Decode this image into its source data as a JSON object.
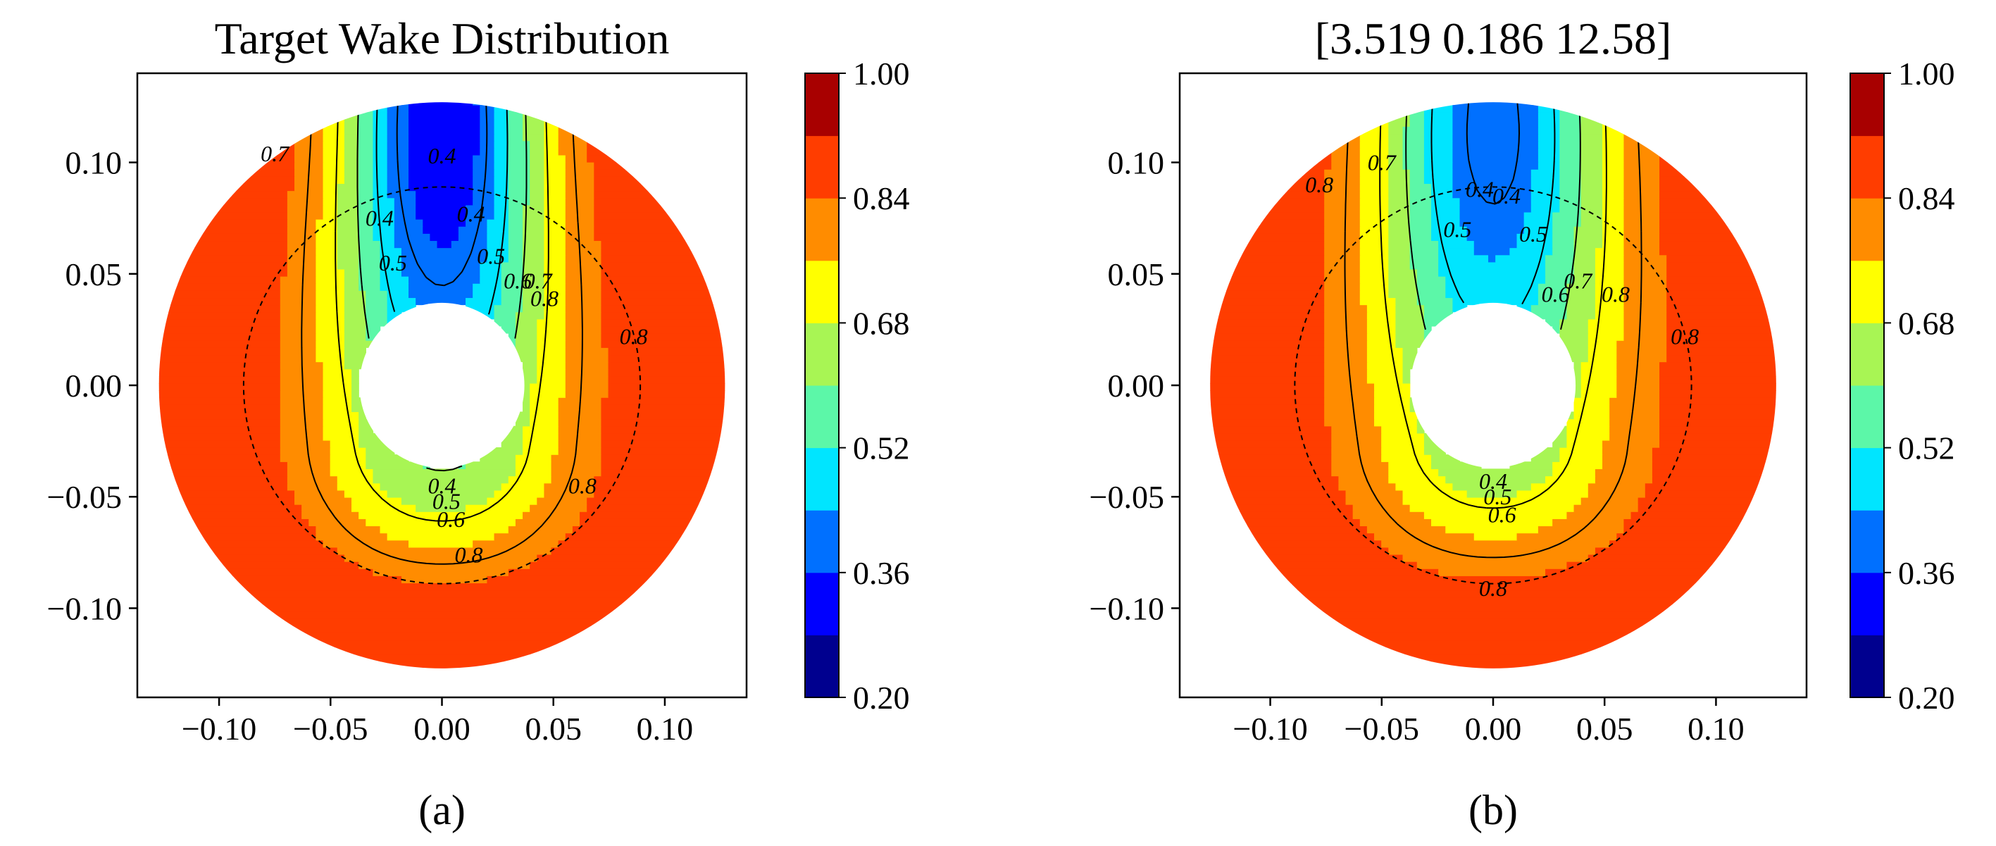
{
  "chart_data": [
    {
      "type": "contour",
      "panel_label": "(a)",
      "title": "Target Wake Distribution",
      "xlabel": "",
      "ylabel": "",
      "xlim": [
        -0.14,
        0.14
      ],
      "ylim": [
        -0.14,
        0.14
      ],
      "xticks": [
        "−0.10",
        "−0.05",
        "0.00",
        "0.05",
        "0.10"
      ],
      "yticks": [
        "0.10",
        "0.05",
        "0.00",
        "−0.05",
        "−0.10"
      ],
      "xtick_values": [
        -0.1,
        -0.05,
        0.0,
        0.05,
        0.1
      ],
      "ytick_values": [
        0.1,
        0.05,
        0.0,
        -0.05,
        -0.1
      ],
      "outer_radius": 0.127,
      "hub_radius": 0.037,
      "dashed_circle_radius": 0.089,
      "min_at_top_value": 0.3,
      "base_value": 0.905,
      "wake_width_top": 0.045,
      "wake_width_bottom": 0.055,
      "contour_levels": [
        0.4,
        0.5,
        0.6,
        0.7,
        0.8
      ],
      "contour_labels": [
        {
          "text": "0.4",
          "x": 0.0,
          "y": 0.103
        },
        {
          "text": "0.4",
          "x": -0.028,
          "y": 0.075
        },
        {
          "text": "0.4",
          "x": 0.013,
          "y": 0.077
        },
        {
          "text": "0.5",
          "x": -0.022,
          "y": 0.055
        },
        {
          "text": "0.5",
          "x": 0.022,
          "y": 0.058
        },
        {
          "text": "0.6",
          "x": 0.034,
          "y": 0.047
        },
        {
          "text": "0.7",
          "x": 0.043,
          "y": 0.047
        },
        {
          "text": "0.8",
          "x": 0.046,
          "y": 0.039
        },
        {
          "text": "0.8",
          "x": 0.086,
          "y": 0.022
        },
        {
          "text": "0.7",
          "x": -0.075,
          "y": 0.104
        },
        {
          "text": "0.8",
          "x": 0.063,
          "y": -0.045
        },
        {
          "text": "0.4",
          "x": 0.0,
          "y": -0.045
        },
        {
          "text": "0.5",
          "x": 0.002,
          "y": -0.052
        },
        {
          "text": "0.6",
          "x": 0.004,
          "y": -0.06
        },
        {
          "text": "0.8",
          "x": 0.012,
          "y": -0.076
        }
      ],
      "colorbar_ticks": [
        "1.00",
        "0.84",
        "0.68",
        "0.52",
        "0.36",
        "0.20"
      ]
    },
    {
      "type": "contour",
      "panel_label": "(b)",
      "title": "[3.519  0.186  12.58]",
      "xlabel": "",
      "ylabel": "",
      "xlim": [
        -0.14,
        0.14
      ],
      "ylim": [
        -0.14,
        0.14
      ],
      "xticks": [
        "−0.10",
        "−0.05",
        "0.00",
        "0.05",
        "0.10"
      ],
      "yticks": [
        "0.10",
        "0.05",
        "0.00",
        "−0.05",
        "−0.10"
      ],
      "xtick_values": [
        -0.1,
        -0.05,
        0.0,
        0.05,
        0.1
      ],
      "ytick_values": [
        0.1,
        0.05,
        0.0,
        -0.05,
        -0.1
      ],
      "outer_radius": 0.127,
      "hub_radius": 0.037,
      "dashed_circle_radius": 0.089,
      "min_at_top_value": 0.38,
      "base_value": 0.905,
      "wake_width_top": 0.052,
      "wake_width_bottom": 0.058,
      "contour_levels": [
        0.4,
        0.5,
        0.6,
        0.7,
        0.8
      ],
      "contour_labels": [
        {
          "text": "0.4",
          "x": -0.006,
          "y": 0.088
        },
        {
          "text": "0.4",
          "x": 0.006,
          "y": 0.085
        },
        {
          "text": "0.5",
          "x": -0.016,
          "y": 0.07
        },
        {
          "text": "0.5",
          "x": 0.018,
          "y": 0.068
        },
        {
          "text": "0.6",
          "x": 0.028,
          "y": 0.041
        },
        {
          "text": "0.7",
          "x": 0.038,
          "y": 0.047
        },
        {
          "text": "0.8",
          "x": 0.055,
          "y": 0.041
        },
        {
          "text": "0.7",
          "x": -0.05,
          "y": 0.1
        },
        {
          "text": "0.8",
          "x": -0.078,
          "y": 0.09
        },
        {
          "text": "0.8",
          "x": 0.086,
          "y": 0.022
        },
        {
          "text": "0.4",
          "x": 0.0,
          "y": -0.043
        },
        {
          "text": "0.5",
          "x": 0.002,
          "y": -0.05
        },
        {
          "text": "0.6",
          "x": 0.004,
          "y": -0.058
        },
        {
          "text": "0.8",
          "x": 0.0,
          "y": -0.091
        }
      ],
      "colorbar_ticks": [
        "1.00",
        "0.84",
        "0.68",
        "0.52",
        "0.36",
        "0.20"
      ]
    }
  ],
  "colorbar": {
    "min": 0.2,
    "max": 1.0,
    "bands": [
      "#00008f",
      "#0000ff",
      "#0070ff",
      "#00e5ff",
      "#5cf7a8",
      "#a8f554",
      "#ffff00",
      "#ff8c00",
      "#ff3d00",
      "#a80000"
    ]
  }
}
